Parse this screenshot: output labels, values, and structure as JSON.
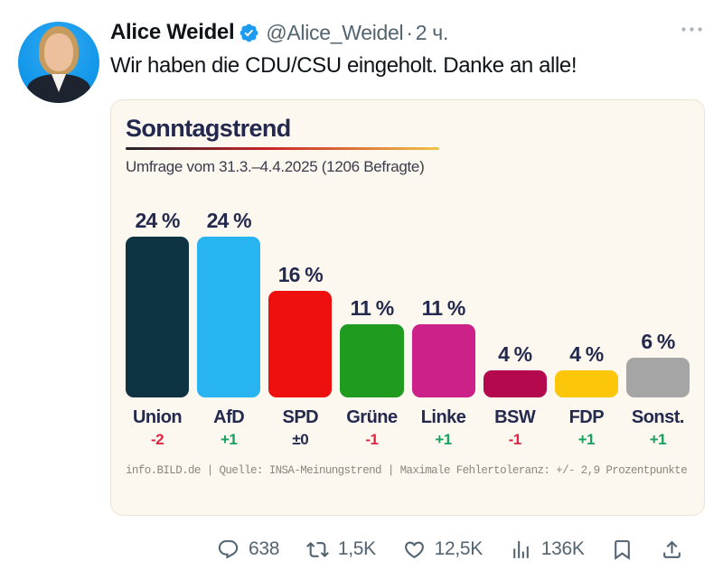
{
  "post": {
    "author": "Alice Weidel",
    "handle": "@Alice_Weidel",
    "separator": "·",
    "time": "2 ч.",
    "text": "Wir haben die CDU/CSU eingeholt. Danke an alle!"
  },
  "chart_data": {
    "type": "bar",
    "title": "Sonntagstrend",
    "subtitle": "Umfrage vom 31.3.–4.4.2025 (1206 Befragte)",
    "footer": "info.BILD.de | Quelle: INSA-Meinungstrend | Maximale Fehlertoleranz: +/- 2,9 Prozentpunkte",
    "unit": "%",
    "ylim": [
      0,
      26
    ],
    "categories": [
      "Union",
      "AfD",
      "SPD",
      "Grüne",
      "Linke",
      "BSW",
      "FDP",
      "Sonst."
    ],
    "values": [
      24,
      24,
      16,
      11,
      11,
      4,
      4,
      6
    ],
    "value_labels": [
      "24 %",
      "24 %",
      "16 %",
      "11 %",
      "11 %",
      "4 %",
      "4 %",
      "6 %"
    ],
    "bar_colors": [
      "#0e3444",
      "#27b4f1",
      "#ee0f0f",
      "#1f9c1f",
      "#cc2189",
      "#b40a4d",
      "#fcc60a",
      "#a5a5a5"
    ],
    "changes": [
      {
        "text": "-2",
        "dir": "down"
      },
      {
        "text": "+1",
        "dir": "up"
      },
      {
        "text": "±0",
        "dir": "zero"
      },
      {
        "text": "-1",
        "dir": "down"
      },
      {
        "text": "+1",
        "dir": "up"
      },
      {
        "text": "-1",
        "dir": "down"
      },
      {
        "text": "+1",
        "dir": "up"
      },
      {
        "text": "+1",
        "dir": "up"
      }
    ]
  },
  "colors": {
    "up": "#17a05e",
    "down": "#df2440",
    "zero": "#232a4e",
    "accent_blue": "#1d9bf0",
    "card_bg": "#fcf7ef",
    "navy_text": "#232a4e"
  },
  "actions": {
    "reply_count": "638",
    "repost_count": "1,5K",
    "like_count": "12,5K",
    "view_count": "136K"
  }
}
